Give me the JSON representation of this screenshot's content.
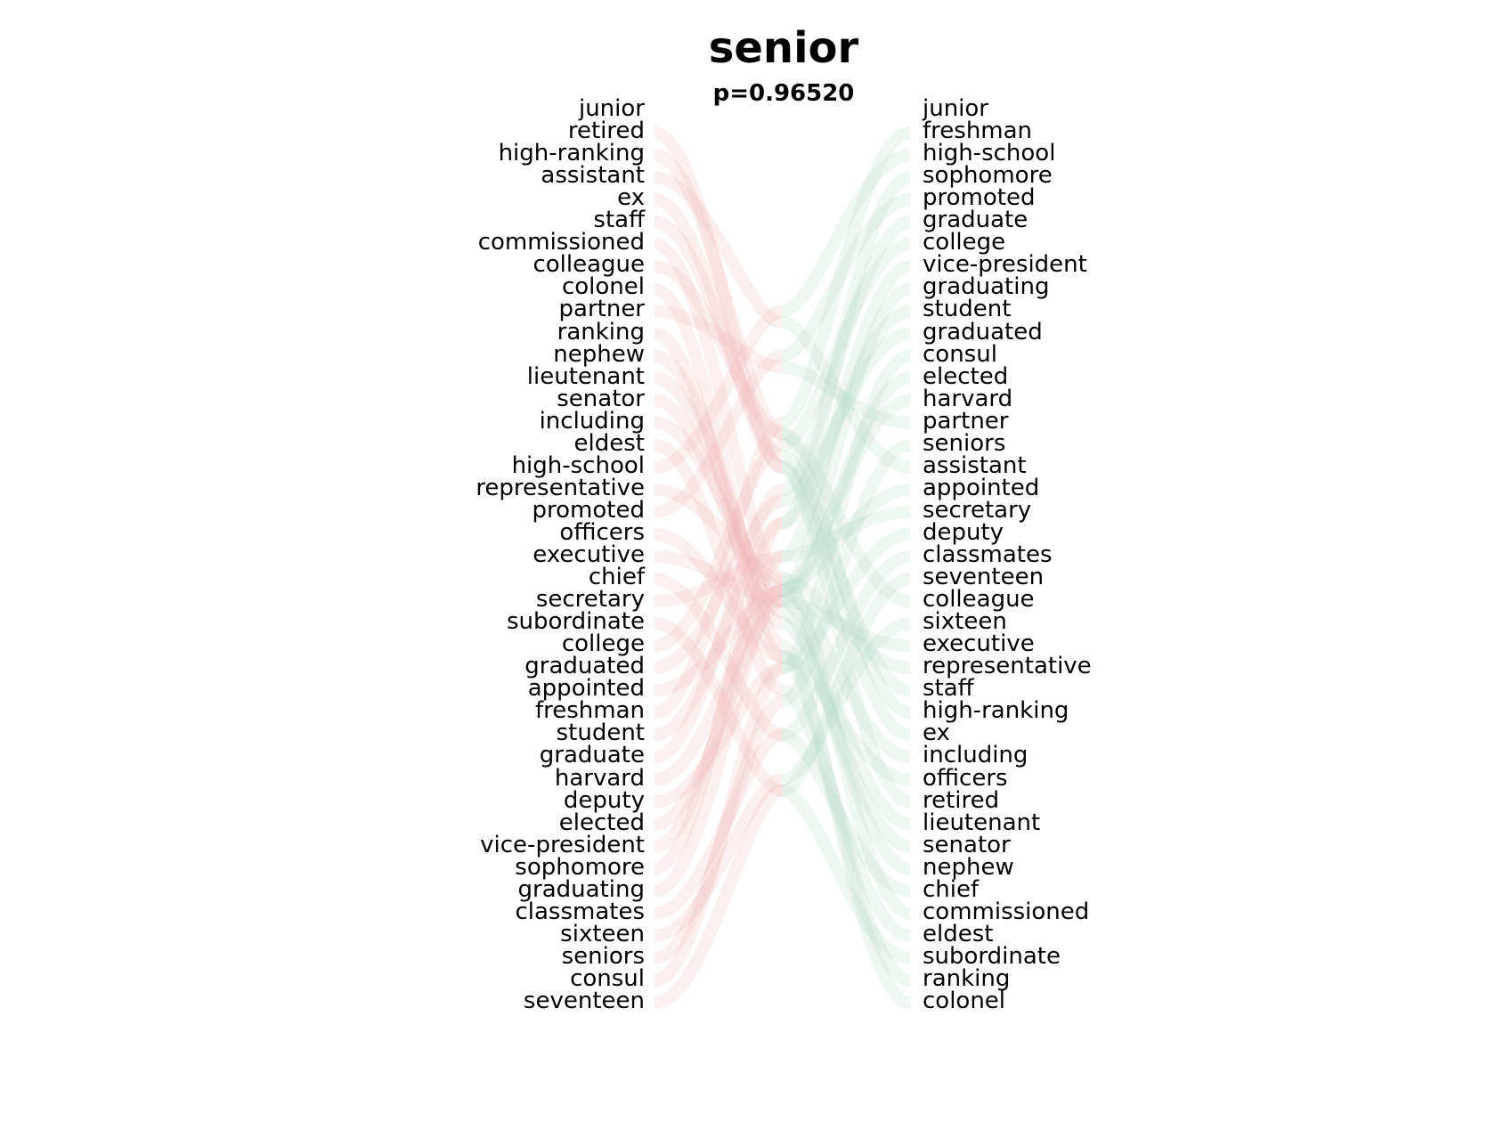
{
  "title": "senior",
  "subtitle": "p=0.96520",
  "left_words": [
    "junior",
    "retired",
    "high-ranking",
    "assistant",
    "ex",
    "staff",
    "commissioned",
    "colleague",
    "colonel",
    "partner",
    "ranking",
    "nephew",
    "lieutenant",
    "senator",
    "including",
    "eldest",
    "high-school",
    "representative",
    "promoted",
    "officers",
    "executive",
    "chief",
    "secretary",
    "subordinate",
    "college",
    "graduated",
    "appointed",
    "freshman",
    "student",
    "graduate",
    "harvard",
    "deputy",
    "elected",
    "vice-president",
    "sophomore",
    "graduating",
    "classmates",
    "sixteen",
    "seniors",
    "consul",
    "seventeen"
  ],
  "right_words": [
    "junior",
    "freshman",
    "high-school",
    "sophomore",
    "promoted",
    "graduate",
    "college",
    "vice-president",
    "graduating",
    "student",
    "graduated",
    "consul",
    "elected",
    "harvard",
    "partner",
    "seniors",
    "assistant",
    "appointed",
    "secretary",
    "deputy",
    "classmates",
    "seventeen",
    "colleague",
    "sixteen",
    "executive",
    "representative",
    "staff",
    "high-ranking",
    "ex",
    "including",
    "officers",
    "retired",
    "lieutenant",
    "senator",
    "nephew",
    "chief",
    "commissioned",
    "eldest",
    "subordinate",
    "ranking",
    "colonel"
  ],
  "colors": {
    "left_ribbon": "#f2b8b8",
    "right_ribbon": "#b8dcc8",
    "mid_ribbon": "#e6eeb0"
  }
}
